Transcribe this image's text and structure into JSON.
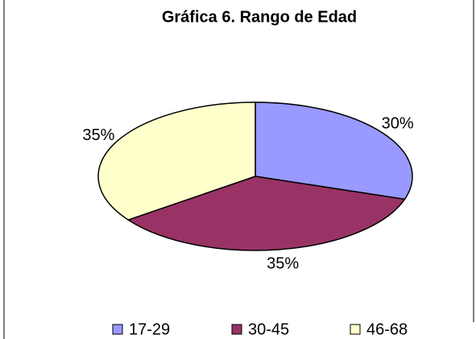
{
  "chart_data": {
    "type": "pie",
    "title": "Gráfica 6. Rango de Edad",
    "categories": [
      "17-29",
      "30-45",
      "46-68"
    ],
    "values": [
      30,
      35,
      35
    ],
    "value_labels": [
      "30%",
      "35%",
      "35%"
    ],
    "colors": [
      "#9999ff",
      "#993366",
      "#ffffcc"
    ],
    "legend": "bottom"
  }
}
